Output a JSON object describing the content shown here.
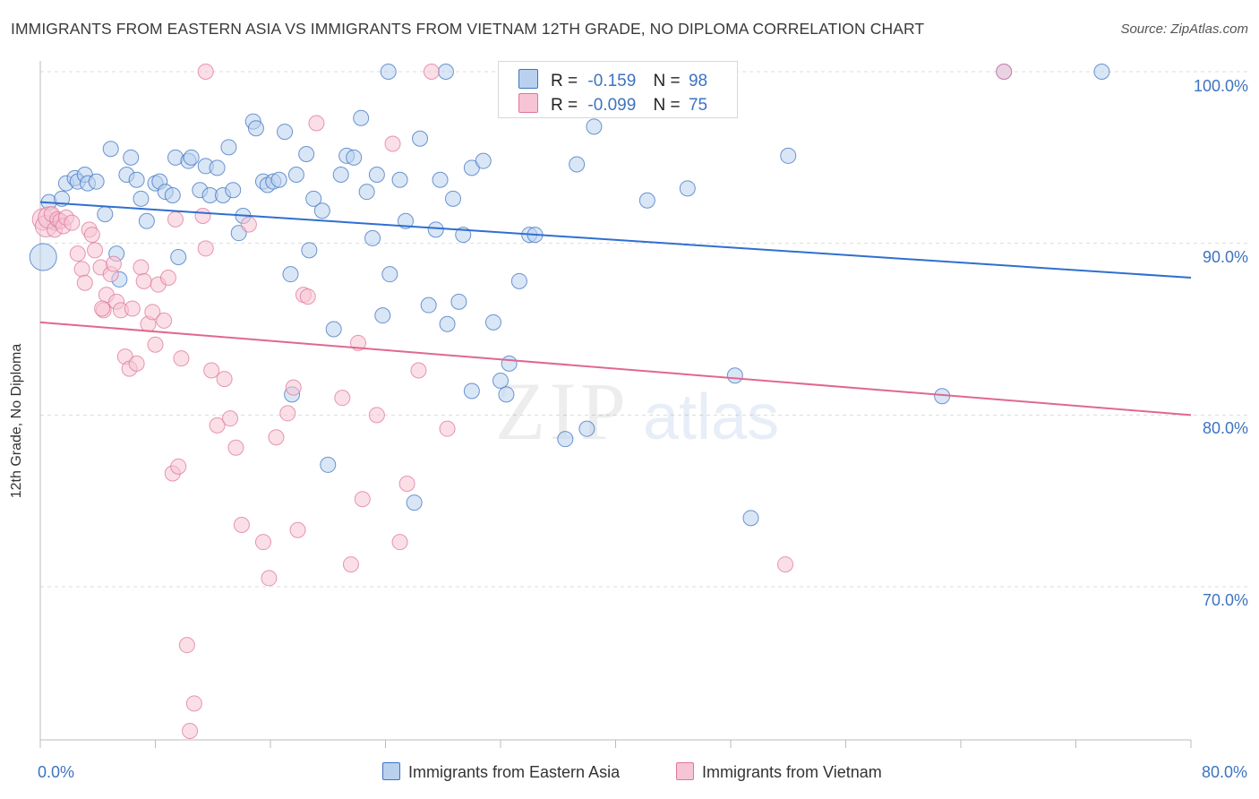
{
  "title": "IMMIGRANTS FROM EASTERN ASIA VS IMMIGRANTS FROM VIETNAM 12TH GRADE, NO DIPLOMA CORRELATION CHART",
  "source": "Source: ZipAtlas.com",
  "watermark": "ZIPatlas",
  "legend": {
    "r_label": "R =",
    "n_label": "N =",
    "rows": [
      {
        "r_value": "-0.159",
        "n_value": "98"
      },
      {
        "r_value": "-0.099",
        "n_value": "75"
      }
    ]
  },
  "colors": {
    "blue": "#3d73c0",
    "blue_fill": "#b9d1ef",
    "blue_line": "#2f6fd0",
    "pink": "#e0769a",
    "pink_fill": "#f6c4d4",
    "pink_line": "#e06890",
    "grid": "#dcdcdc"
  },
  "chart_data": {
    "type": "scatter",
    "title": "IMMIGRANTS FROM EASTERN ASIA VS IMMIGRANTS FROM VIETNAM 12TH GRADE, NO DIPLOMA CORRELATION CHART",
    "xlabel": "",
    "ylabel": "12th Grade, No Diploma",
    "x_tick_labels": [
      "0.0%",
      "80.0%"
    ],
    "y_tick_labels": [
      "100.0%",
      "90.0%",
      "80.0%",
      "70.0%"
    ],
    "xlim": [
      0,
      80
    ],
    "ylim": [
      60,
      101.5
    ],
    "grid": true,
    "legend_position": "bottom",
    "series": [
      {
        "name": "Immigrants from Eastern Asia",
        "r": -0.159,
        "n": 98,
        "trend": [
          [
            0,
            92.4
          ],
          [
            80,
            88.0
          ]
        ],
        "points": [
          [
            0.2,
            89.2
          ],
          [
            0.6,
            92.4
          ],
          [
            1.0,
            91.2
          ],
          [
            1.5,
            92.6
          ],
          [
            1.8,
            93.5
          ],
          [
            2.4,
            93.8
          ],
          [
            2.6,
            93.6
          ],
          [
            3.1,
            94.0
          ],
          [
            3.3,
            93.5
          ],
          [
            3.9,
            93.6
          ],
          [
            4.5,
            91.7
          ],
          [
            4.9,
            95.5
          ],
          [
            5.3,
            89.4
          ],
          [
            5.5,
            87.9
          ],
          [
            6.0,
            94.0
          ],
          [
            6.3,
            95.0
          ],
          [
            6.7,
            93.7
          ],
          [
            7.0,
            92.6
          ],
          [
            7.4,
            91.3
          ],
          [
            8.0,
            93.5
          ],
          [
            8.3,
            93.6
          ],
          [
            8.7,
            93.0
          ],
          [
            9.2,
            92.8
          ],
          [
            9.6,
            89.2
          ],
          [
            9.4,
            95.0
          ],
          [
            10.3,
            94.8
          ],
          [
            10.5,
            95.0
          ],
          [
            11.1,
            93.1
          ],
          [
            11.5,
            94.5
          ],
          [
            11.8,
            92.8
          ],
          [
            12.3,
            94.4
          ],
          [
            12.7,
            92.8
          ],
          [
            13.1,
            95.6
          ],
          [
            13.4,
            93.1
          ],
          [
            13.8,
            90.6
          ],
          [
            14.1,
            91.6
          ],
          [
            14.8,
            97.1
          ],
          [
            15.0,
            96.7
          ],
          [
            15.5,
            93.6
          ],
          [
            15.8,
            93.4
          ],
          [
            16.2,
            93.6
          ],
          [
            16.6,
            93.7
          ],
          [
            17.0,
            96.5
          ],
          [
            17.4,
            88.2
          ],
          [
            17.8,
            94.0
          ],
          [
            18.5,
            95.2
          ],
          [
            18.7,
            89.6
          ],
          [
            19.0,
            92.6
          ],
          [
            19.6,
            91.9
          ],
          [
            20.4,
            85.0
          ],
          [
            20.9,
            94.0
          ],
          [
            21.3,
            95.1
          ],
          [
            21.8,
            95.0
          ],
          [
            22.3,
            97.3
          ],
          [
            22.7,
            93.0
          ],
          [
            23.1,
            90.3
          ],
          [
            23.4,
            94.0
          ],
          [
            23.8,
            85.8
          ],
          [
            24.3,
            88.2
          ],
          [
            25.0,
            93.7
          ],
          [
            25.4,
            91.3
          ],
          [
            26.4,
            96.1
          ],
          [
            27.0,
            86.4
          ],
          [
            27.5,
            90.8
          ],
          [
            27.8,
            93.7
          ],
          [
            28.3,
            85.3
          ],
          [
            28.7,
            92.6
          ],
          [
            29.1,
            86.6
          ],
          [
            29.4,
            90.5
          ],
          [
            30.0,
            94.4
          ],
          [
            30.8,
            94.8
          ],
          [
            31.5,
            85.4
          ],
          [
            32.0,
            82.0
          ],
          [
            32.4,
            81.2
          ],
          [
            32.6,
            83.0
          ],
          [
            33.3,
            87.8
          ],
          [
            34.0,
            90.5
          ],
          [
            34.4,
            90.5
          ],
          [
            36.5,
            78.6
          ],
          [
            37.3,
            94.6
          ],
          [
            38.0,
            79.2
          ],
          [
            38.5,
            96.8
          ],
          [
            42.2,
            92.5
          ],
          [
            45.0,
            93.2
          ],
          [
            48.3,
            82.3
          ],
          [
            49.4,
            74.0
          ],
          [
            52.0,
            95.1
          ],
          [
            62.7,
            81.1
          ],
          [
            67.0,
            100.0
          ],
          [
            73.8,
            100.0
          ],
          [
            17.5,
            81.2
          ],
          [
            20.0,
            77.1
          ],
          [
            26.0,
            74.9
          ],
          [
            30.0,
            81.4
          ],
          [
            42.8,
            99.8
          ],
          [
            28.2,
            100.0
          ],
          [
            24.2,
            100.0
          ],
          [
            36.2,
            100.0
          ]
        ]
      },
      {
        "name": "Immigrants from Vietnam",
        "r": -0.099,
        "n": 75,
        "trend": [
          [
            0,
            85.4
          ],
          [
            80,
            80.0
          ]
        ],
        "points": [
          [
            0.2,
            91.4
          ],
          [
            0.4,
            91.0
          ],
          [
            0.6,
            91.5
          ],
          [
            0.8,
            91.7
          ],
          [
            1.0,
            90.8
          ],
          [
            1.2,
            91.4
          ],
          [
            1.4,
            91.3
          ],
          [
            1.6,
            91.0
          ],
          [
            1.8,
            91.5
          ],
          [
            2.2,
            91.2
          ],
          [
            2.6,
            89.4
          ],
          [
            2.9,
            88.5
          ],
          [
            3.1,
            87.7
          ],
          [
            3.4,
            90.8
          ],
          [
            3.6,
            90.5
          ],
          [
            3.8,
            89.6
          ],
          [
            4.2,
            88.6
          ],
          [
            4.4,
            86.1
          ],
          [
            4.6,
            87.0
          ],
          [
            4.9,
            88.2
          ],
          [
            5.1,
            88.8
          ],
          [
            5.3,
            86.6
          ],
          [
            5.6,
            86.1
          ],
          [
            5.9,
            83.4
          ],
          [
            6.2,
            82.7
          ],
          [
            6.4,
            86.2
          ],
          [
            6.7,
            83.0
          ],
          [
            7.0,
            88.6
          ],
          [
            7.2,
            87.8
          ],
          [
            7.5,
            85.3
          ],
          [
            7.8,
            86.0
          ],
          [
            8.0,
            84.1
          ],
          [
            8.2,
            87.6
          ],
          [
            8.6,
            85.5
          ],
          [
            8.9,
            88.0
          ],
          [
            9.2,
            76.6
          ],
          [
            9.4,
            91.4
          ],
          [
            9.6,
            77.0
          ],
          [
            9.8,
            83.3
          ],
          [
            10.2,
            66.6
          ],
          [
            10.4,
            61.6
          ],
          [
            10.7,
            63.2
          ],
          [
            11.3,
            91.6
          ],
          [
            11.5,
            89.7
          ],
          [
            11.9,
            82.6
          ],
          [
            12.3,
            79.4
          ],
          [
            12.8,
            82.1
          ],
          [
            13.2,
            79.8
          ],
          [
            13.6,
            78.1
          ],
          [
            14.0,
            73.6
          ],
          [
            14.5,
            91.1
          ],
          [
            15.5,
            72.6
          ],
          [
            15.9,
            70.5
          ],
          [
            16.4,
            78.7
          ],
          [
            17.2,
            80.1
          ],
          [
            17.6,
            81.6
          ],
          [
            17.9,
            73.3
          ],
          [
            18.3,
            87.0
          ],
          [
            18.6,
            86.9
          ],
          [
            19.2,
            97.0
          ],
          [
            21.0,
            81.0
          ],
          [
            21.6,
            71.3
          ],
          [
            22.1,
            84.2
          ],
          [
            22.4,
            75.1
          ],
          [
            23.4,
            80.0
          ],
          [
            24.5,
            95.8
          ],
          [
            25.0,
            72.6
          ],
          [
            25.5,
            76.0
          ],
          [
            26.3,
            82.6
          ],
          [
            28.3,
            79.2
          ],
          [
            51.8,
            71.3
          ],
          [
            67.0,
            100.0
          ],
          [
            11.5,
            100.0
          ],
          [
            27.2,
            100.0
          ],
          [
            4.3,
            86.2
          ]
        ]
      }
    ]
  },
  "bottom_legend": [
    {
      "label": "Immigrants from Eastern Asia"
    },
    {
      "label": "Immigrants from Vietnam"
    }
  ]
}
